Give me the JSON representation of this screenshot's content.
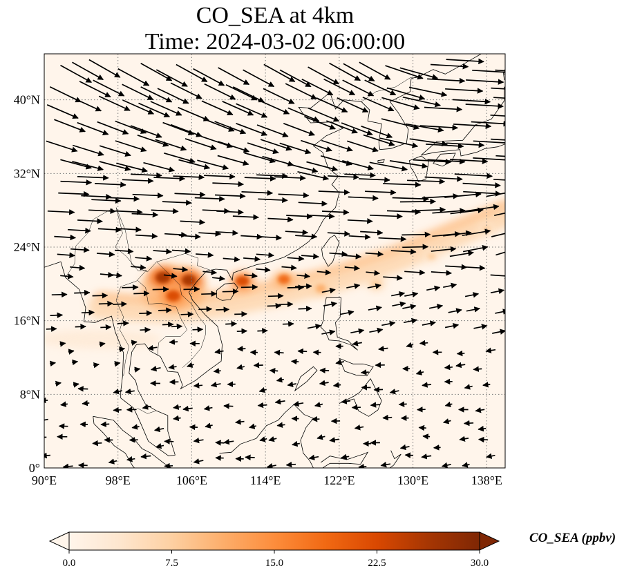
{
  "chart_data": {
    "type": "heatmap",
    "title": "CO_SEA at 4km",
    "subtitle": "Time: 2024-03-02 06:00:00",
    "xlim": [
      90,
      140
    ],
    "ylim": [
      0,
      45
    ],
    "x_ticks": [
      90,
      98,
      106,
      114,
      122,
      130,
      138
    ],
    "x_tick_labels": [
      "90°E",
      "98°E",
      "106°E",
      "114°E",
      "122°E",
      "130°E",
      "138°E"
    ],
    "y_ticks": [
      0,
      8,
      16,
      24,
      32,
      40
    ],
    "y_tick_labels": [
      "0°",
      "8°N",
      "16°N",
      "24°N",
      "32°N",
      "40°N"
    ],
    "grid": "dotted",
    "colorbar": {
      "label": "CO_SEA (ppbv)",
      "min": 0,
      "max": 30,
      "ticks": [
        "0.0",
        "7.5",
        "15.0",
        "22.5",
        "30.0"
      ],
      "extend": "both",
      "colormap": [
        "#fff5eb",
        "#fee6ce",
        "#fdd0a2",
        "#fdae6b",
        "#fd8d3c",
        "#f16913",
        "#d94801",
        "#a63603",
        "#7f2704"
      ]
    },
    "plumes": [
      {
        "lon": 102.9,
        "lat": 20.7,
        "value": 27
      },
      {
        "lon": 105.7,
        "lat": 20.4,
        "value": 25
      },
      {
        "lon": 104.0,
        "lat": 18.7,
        "value": 24
      },
      {
        "lon": 111.5,
        "lat": 20.3,
        "value": 22
      },
      {
        "lon": 116.0,
        "lat": 20.5,
        "value": 18
      },
      {
        "lon": 120.0,
        "lat": 19.5,
        "value": 12
      },
      {
        "lon": 126.0,
        "lat": 20.0,
        "value": 9
      },
      {
        "lon": 132.0,
        "lat": 23.0,
        "value": 8
      },
      {
        "lon": 138.0,
        "lat": 26.0,
        "value": 7
      }
    ],
    "wind_field": "vectors (westerlies north of ~20°N, weak easterly trades to the south)"
  }
}
